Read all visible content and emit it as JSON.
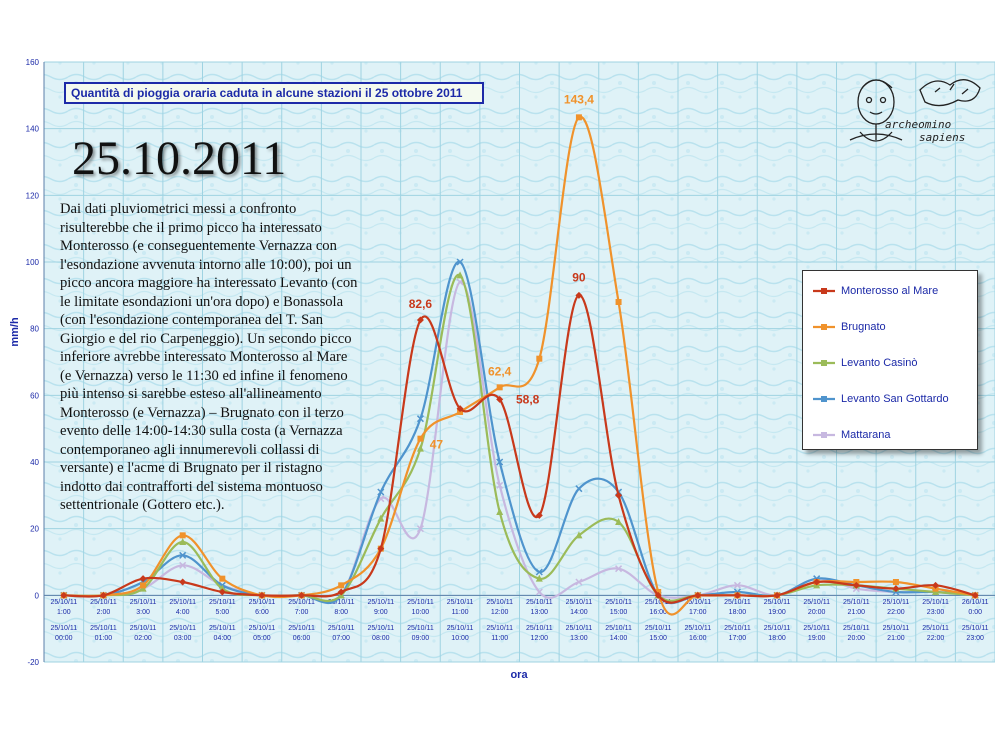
{
  "title": "Quantità di pioggia oraria caduta in alcune stazioni il 25 ottobre 2011",
  "big_date": "25.10.2011",
  "note": "Dai dati pluviometrici messi a confronto risulterebbe che il primo picco ha interessato Monterosso (e conseguentemente Vernazza con l'esondazione avvenuta intorno alle 10:00), poi un picco ancora maggiore ha interessato Levanto (con le limitate esondazioni un'ora dopo) e Bonassola (con l'esondazione contemporanea del T. San Giorgio e del rio Carpeneggio). Un secondo picco inferiore avrebbe interessato Monterosso al Mare (e Vernazza) verso le 11:30 ed infine il fenomeno più intenso si sarebbe esteso all'allineamento Monterosso (e Vernazza) – Brugnato con il terzo evento delle 14:00-14:30 sulla costa (a Vernazza contemporaneo agli innumerevoli collassi di versante) e l'acme di Brugnato per il ristagno indotto dai contrafforti del sistema montuoso settentrionale (Gottero etc.).",
  "logo": {
    "line1": "archeomino",
    "line2": "sapiens"
  },
  "chart_data": {
    "type": "line",
    "title": "Quantità di pioggia oraria caduta in alcune stazioni il 25 ottobre 2011",
    "xlabel": "ora",
    "ylabel": "mm/h",
    "ylim": [
      -20,
      160
    ],
    "yticks": [
      -20,
      0,
      20,
      40,
      60,
      80,
      100,
      120,
      140,
      160
    ],
    "grid": true,
    "legend_position": "right",
    "categories_top": [
      "25/10/11 1:00",
      "25/10/11 2:00",
      "25/10/11 3:00",
      "25/10/11 4:00",
      "25/10/11 5:00",
      "25/10/11 6:00",
      "25/10/11 7:00",
      "25/10/11 8:00",
      "25/10/11 9:00",
      "25/10/11 10:00",
      "25/10/11 11:00",
      "25/10/11 12:00",
      "25/10/11 13:00",
      "25/10/11 14:00",
      "25/10/11 15:00",
      "25/10/11 16:00",
      "25/10/11 17:00",
      "25/10/11 18:00",
      "25/10/11 19:00",
      "25/10/11 20:00",
      "25/10/11 21:00",
      "25/10/11 22:00",
      "25/10/11 23:00",
      "26/10/11 0:00"
    ],
    "categories_bottom": [
      "25/10/11 00:00",
      "25/10/11 01:00",
      "25/10/11 02:00",
      "25/10/11 03:00",
      "25/10/11 04:00",
      "25/10/11 05:00",
      "25/10/11 06:00",
      "25/10/11 07:00",
      "25/10/11 08:00",
      "25/10/11 09:00",
      "25/10/11 10:00",
      "25/10/11 11:00",
      "25/10/11 12:00",
      "25/10/11 13:00",
      "25/10/11 14:00",
      "25/10/11 15:00",
      "25/10/11 16:00",
      "25/10/11 17:00",
      "25/10/11 18:00",
      "25/10/11 19:00",
      "25/10/11 20:00",
      "25/10/11 21:00",
      "25/10/11 22:00",
      "25/10/11 23:00"
    ],
    "series": [
      {
        "name": "Monterosso al Mare",
        "color": "#c8391b",
        "marker": "diamond",
        "values": [
          0,
          0,
          5,
          4,
          1,
          0,
          0,
          1,
          14,
          82.6,
          56,
          58.8,
          24,
          90,
          30,
          0,
          0,
          0,
          0,
          4,
          3,
          2,
          3,
          0
        ]
      },
      {
        "name": "Brugnato",
        "color": "#f0922b",
        "marker": "square",
        "values": [
          0,
          0,
          3,
          18,
          5,
          0,
          0,
          3,
          14,
          47,
          55,
          62.4,
          71,
          143.4,
          88,
          1,
          0,
          0,
          0,
          4,
          4,
          4,
          2,
          0
        ]
      },
      {
        "name": "Levanto Casinò",
        "color": "#9bbb59",
        "marker": "triangle",
        "values": [
          0,
          0,
          2,
          16,
          2,
          0,
          0,
          0,
          23,
          44,
          96,
          25,
          5,
          18,
          22,
          0,
          0,
          0,
          0,
          3,
          3,
          2,
          1,
          0
        ]
      },
      {
        "name": "Levanto San Gottardo",
        "color": "#4f94cd",
        "marker": "x",
        "values": [
          0,
          0,
          4,
          12,
          3,
          0,
          0,
          0,
          31,
          53,
          100,
          40,
          7,
          32,
          31,
          0,
          0,
          1,
          0,
          5,
          3,
          1,
          1,
          0
        ]
      },
      {
        "name": "Mattarana",
        "color": "#c7b8e0",
        "marker": "x",
        "values": [
          0,
          0,
          2,
          9,
          3,
          0,
          0,
          0,
          29,
          20,
          94,
          33,
          1,
          4,
          8,
          0,
          0,
          3,
          0,
          5,
          2,
          1,
          1,
          0
        ]
      }
    ],
    "data_labels": [
      {
        "text": "82,6",
        "series": "Monterosso al Mare",
        "index": 9,
        "color": "#c8391b"
      },
      {
        "text": "47",
        "series": "Brugnato",
        "index": 9,
        "color": "#f0922b"
      },
      {
        "text": "62,4",
        "series": "Brugnato",
        "index": 11,
        "color": "#f0922b"
      },
      {
        "text": "58,8",
        "series": "Monterosso al Mare",
        "index": 11,
        "color": "#c8391b"
      },
      {
        "text": "90",
        "series": "Monterosso al Mare",
        "index": 13,
        "color": "#c8391b"
      },
      {
        "text": "143,4",
        "series": "Brugnato",
        "index": 13,
        "color": "#f0922b"
      }
    ]
  }
}
